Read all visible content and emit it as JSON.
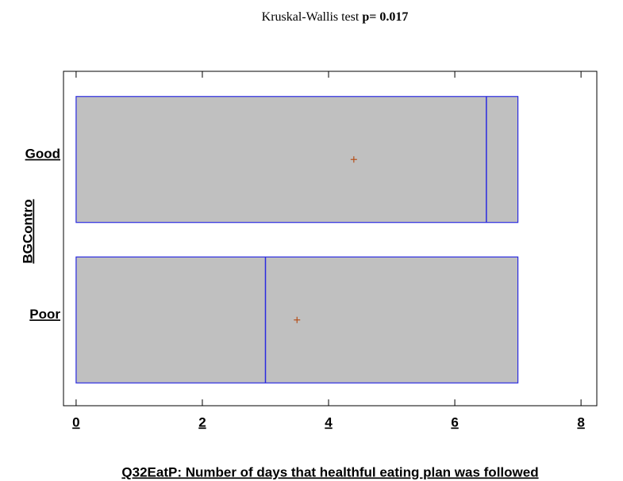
{
  "chart_data": {
    "type": "box",
    "title": "Kruskal-Wallis  test",
    "p_label": "p=",
    "p_value": 0.017,
    "categories": [
      "Good",
      "Poor"
    ],
    "boxes": [
      {
        "q1": 0,
        "median": 6.5,
        "q3": 7,
        "mean": 4.4
      },
      {
        "q1": 0,
        "median": 3,
        "q3": 7,
        "mean": 3.5
      }
    ],
    "box_color": "#c0c0c0",
    "line_color": "#2a2ae0",
    "mean_color": "#b5501a",
    "xlim": [
      -0.2,
      8.25
    ],
    "xticks": [
      0,
      2,
      4,
      6,
      8
    ],
    "x_label": "Q32EatP: Number of days that healthful eating plan was followed",
    "y_label": "BGContro"
  }
}
